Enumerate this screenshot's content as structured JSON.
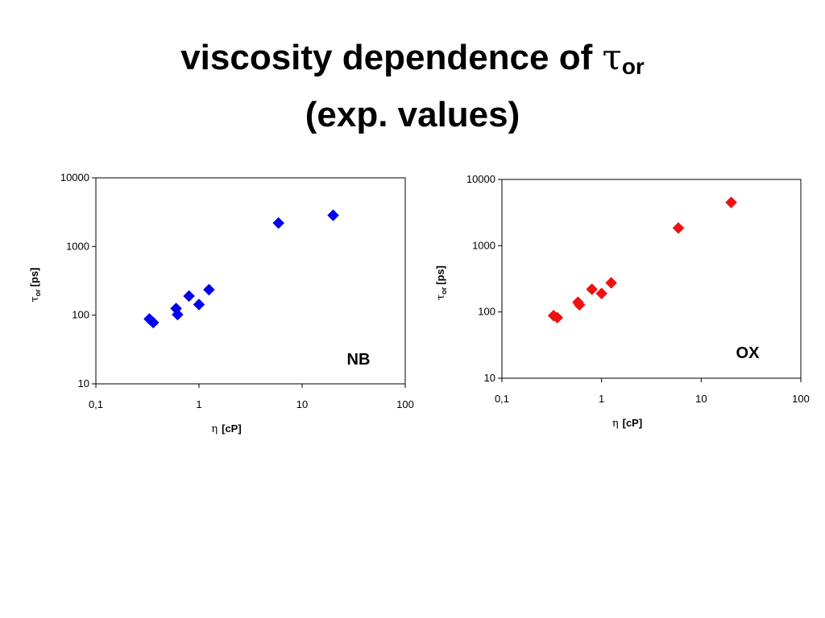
{
  "title": {
    "line1_text": "viscosity dependence of ",
    "line1_symbol": "τ",
    "line1_sub": "or",
    "line2": "(exp. values)"
  },
  "chart_data": [
    {
      "type": "scatter",
      "title": "",
      "annotation": "NB",
      "x_scale": "log",
      "y_scale": "log",
      "xlim": [
        0.1,
        100
      ],
      "ylim": [
        10,
        10000
      ],
      "x_ticks": [
        "0,1",
        "1",
        "10",
        "100"
      ],
      "y_ticks": [
        "10",
        "100",
        "1000",
        "10000"
      ],
      "xlabel_symbol": "η",
      "xlabel_unit": "[cP]",
      "ylabel_symbol": "τ",
      "ylabel_sub": "or",
      "ylabel_unit": "[ps]",
      "color": "#0000ee",
      "marker": "diamond",
      "points": [
        {
          "x": 0.33,
          "y": 88
        },
        {
          "x": 0.36,
          "y": 78
        },
        {
          "x": 0.6,
          "y": 125
        },
        {
          "x": 0.62,
          "y": 102
        },
        {
          "x": 0.8,
          "y": 190
        },
        {
          "x": 1.0,
          "y": 143
        },
        {
          "x": 1.25,
          "y": 235
        },
        {
          "x": 5.9,
          "y": 2200
        },
        {
          "x": 20.0,
          "y": 2850
        }
      ]
    },
    {
      "type": "scatter",
      "title": "",
      "annotation": "OX",
      "x_scale": "log",
      "y_scale": "log",
      "xlim": [
        0.1,
        100
      ],
      "ylim": [
        10,
        10000
      ],
      "x_ticks": [
        "0,1",
        "1",
        "10",
        "100"
      ],
      "y_ticks": [
        "10",
        "100",
        "1000",
        "10000"
      ],
      "xlabel_symbol": "η",
      "xlabel_unit": "[cP]",
      "ylabel_symbol": "τ",
      "ylabel_sub": "or",
      "ylabel_unit": "[ps]",
      "color": "#ee1111",
      "marker": "diamond",
      "points": [
        {
          "x": 0.33,
          "y": 88
        },
        {
          "x": 0.36,
          "y": 82
        },
        {
          "x": 0.58,
          "y": 140
        },
        {
          "x": 0.6,
          "y": 128
        },
        {
          "x": 0.8,
          "y": 220
        },
        {
          "x": 1.0,
          "y": 190
        },
        {
          "x": 1.25,
          "y": 275
        },
        {
          "x": 5.9,
          "y": 1850
        },
        {
          "x": 20.0,
          "y": 4500
        }
      ]
    }
  ]
}
